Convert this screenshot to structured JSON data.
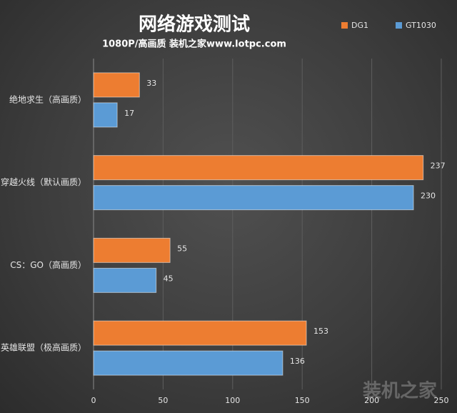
{
  "chart_data": {
    "type": "bar",
    "orientation": "horizontal",
    "title": "网络游戏测试",
    "subtitle": "1080P/高画质 装机之家www.lotpc.com",
    "watermark": "装机之家",
    "categories": [
      "绝地求生（高画质）",
      "穿越火线（默认画质）",
      "CS：GO（高画质）",
      "英雄联盟（极高画质）"
    ],
    "series": [
      {
        "name": "DG1",
        "color": "#ed7d31",
        "values": [
          33,
          237,
          55,
          153
        ]
      },
      {
        "name": "GT1030",
        "color": "#5b9bd5",
        "values": [
          17,
          230,
          45,
          136
        ]
      }
    ],
    "xlim": [
      0,
      250
    ],
    "xticks": [
      0,
      50,
      100,
      150,
      200,
      250
    ],
    "grid": true,
    "legend": "top-right"
  }
}
